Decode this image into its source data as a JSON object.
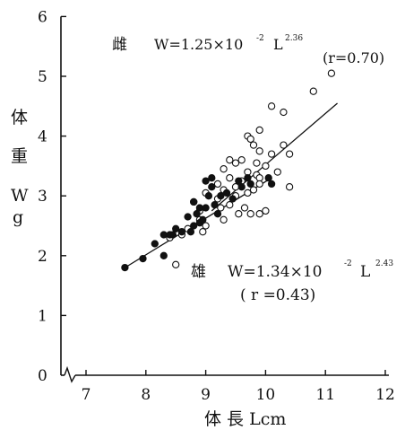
{
  "chart_data": {
    "type": "scatter",
    "title": "",
    "xlabel": "体 長 Lcm",
    "ylabel_chars": [
      "体",
      "重",
      "W",
      "g"
    ],
    "xlim": [
      6.5,
      12
    ],
    "ylim": [
      0,
      6
    ],
    "x_ticks": [
      "7",
      "8",
      "9",
      "10",
      "11",
      "12"
    ],
    "y_ticks": [
      "0",
      "1",
      "2",
      "3",
      "4",
      "5",
      "6"
    ],
    "axis_break": true,
    "grid": false,
    "annotations": {
      "female_label": "雌",
      "female_eq": "W=1.25×10",
      "female_exp": "-2",
      "female_var": "L",
      "female_pow": "2.36",
      "female_r": "(r=0.70)",
      "male_label": "雄",
      "male_eq": "W=1.34×10",
      "male_exp": "-2",
      "male_var": "L",
      "male_pow": "2.43",
      "male_r": "( r =0.43)"
    },
    "series": [
      {
        "group": "female",
        "marker": "open-circle",
        "points": [
          [
            11.1,
            5.05
          ],
          [
            10.8,
            4.75
          ],
          [
            10.1,
            4.5
          ],
          [
            10.3,
            4.4
          ],
          [
            9.9,
            4.1
          ],
          [
            9.7,
            4.0
          ],
          [
            9.75,
            3.95
          ],
          [
            10.3,
            3.85
          ],
          [
            9.8,
            3.85
          ],
          [
            9.9,
            3.75
          ],
          [
            10.4,
            3.7
          ],
          [
            10.1,
            3.7
          ],
          [
            9.6,
            3.6
          ],
          [
            9.4,
            3.6
          ],
          [
            9.5,
            3.55
          ],
          [
            9.85,
            3.55
          ],
          [
            10.0,
            3.5
          ],
          [
            9.3,
            3.45
          ],
          [
            9.7,
            3.4
          ],
          [
            9.85,
            3.35
          ],
          [
            10.2,
            3.4
          ],
          [
            9.9,
            3.3
          ],
          [
            9.4,
            3.3
          ],
          [
            9.6,
            3.25
          ],
          [
            9.2,
            3.2
          ],
          [
            9.9,
            3.2
          ],
          [
            10.4,
            3.15
          ],
          [
            9.5,
            3.15
          ],
          [
            9.8,
            3.1
          ],
          [
            9.3,
            3.1
          ],
          [
            9.0,
            3.05
          ],
          [
            9.7,
            3.05
          ],
          [
            9.5,
            3.0
          ],
          [
            9.2,
            2.95
          ],
          [
            8.8,
            2.9
          ],
          [
            9.4,
            2.85
          ],
          [
            9.65,
            2.8
          ],
          [
            9.25,
            2.8
          ],
          [
            8.9,
            2.75
          ],
          [
            10.0,
            2.75
          ],
          [
            9.9,
            2.7
          ],
          [
            9.55,
            2.7
          ],
          [
            9.75,
            2.7
          ],
          [
            9.3,
            2.6
          ],
          [
            8.9,
            2.6
          ],
          [
            9.0,
            2.5
          ],
          [
            8.7,
            2.45
          ],
          [
            8.95,
            2.4
          ],
          [
            8.6,
            2.35
          ],
          [
            8.4,
            2.3
          ],
          [
            8.5,
            1.85
          ]
        ]
      },
      {
        "group": "male",
        "marker": "filled-circle",
        "points": [
          [
            7.65,
            1.8
          ],
          [
            7.95,
            1.95
          ],
          [
            8.3,
            2.0
          ],
          [
            8.15,
            2.2
          ],
          [
            8.3,
            2.35
          ],
          [
            8.4,
            2.35
          ],
          [
            8.5,
            2.45
          ],
          [
            8.75,
            2.4
          ],
          [
            8.7,
            2.65
          ],
          [
            8.8,
            2.5
          ],
          [
            8.9,
            2.55
          ],
          [
            8.85,
            2.7
          ],
          [
            8.95,
            2.6
          ],
          [
            8.9,
            2.8
          ],
          [
            9.0,
            2.8
          ],
          [
            8.8,
            2.9
          ],
          [
            9.05,
            3.0
          ],
          [
            9.15,
            2.85
          ],
          [
            9.25,
            3.0
          ],
          [
            9.1,
            3.15
          ],
          [
            9.0,
            3.25
          ],
          [
            9.1,
            3.3
          ],
          [
            9.35,
            3.05
          ],
          [
            9.45,
            2.95
          ],
          [
            9.6,
            3.15
          ],
          [
            9.55,
            3.25
          ],
          [
            9.7,
            3.3
          ],
          [
            9.75,
            3.2
          ],
          [
            10.05,
            3.3
          ],
          [
            10.1,
            3.2
          ],
          [
            8.6,
            2.4
          ],
          [
            8.45,
            2.35
          ],
          [
            9.2,
            2.7
          ]
        ]
      }
    ],
    "fit_lines": [
      {
        "group": "female",
        "from": [
          9.1,
          2.75
        ],
        "to": [
          11.2,
          4.55
        ]
      },
      {
        "group": "male",
        "from": [
          7.65,
          1.8
        ],
        "to": [
          10.1,
          3.3
        ]
      }
    ]
  }
}
